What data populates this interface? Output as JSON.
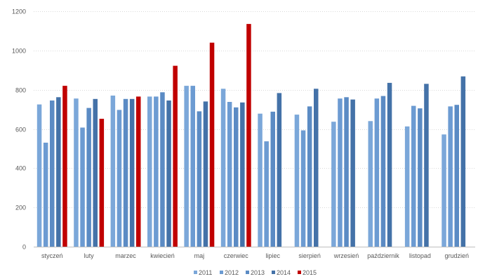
{
  "chart_data": {
    "type": "bar",
    "title": "",
    "xlabel": "",
    "ylabel": "",
    "ylim": [
      0,
      1200
    ],
    "yticks": [
      0,
      200,
      400,
      600,
      800,
      1000,
      1200
    ],
    "grid": true,
    "legend_position": "bottom",
    "categories": [
      "styczeń",
      "luty",
      "marzec",
      "kwiecień",
      "maj",
      "czerwiec",
      "lipiec",
      "sierpień",
      "wrzesień",
      "październik",
      "listopad",
      "grudzień"
    ],
    "series": [
      {
        "name": "2011",
        "color": "#7BA7D9",
        "values": [
          725,
          755,
          770,
          765,
          820,
          805,
          678,
          673,
          637,
          640,
          613,
          572
        ]
      },
      {
        "name": "2012",
        "color": "#6C9BD2",
        "values": [
          530,
          607,
          697,
          765,
          820,
          738,
          537,
          593,
          755,
          755,
          718,
          715
        ]
      },
      {
        "name": "2013",
        "color": "#5B8BC4",
        "values": [
          745,
          707,
          753,
          787,
          690,
          710,
          688,
          715,
          762,
          768,
          705,
          723
        ]
      },
      {
        "name": "2014",
        "color": "#4472A8",
        "values": [
          762,
          753,
          753,
          745,
          740,
          735,
          783,
          805,
          750,
          835,
          830,
          868
        ]
      },
      {
        "name": "2015",
        "color": "#C00000",
        "values": [
          820,
          652,
          765,
          922,
          1040,
          1135,
          null,
          null,
          null,
          null,
          null,
          null
        ]
      }
    ]
  }
}
